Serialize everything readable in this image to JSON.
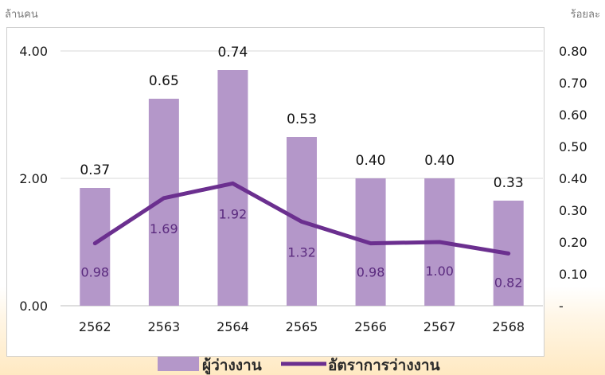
{
  "chart_data": {
    "type": "bar",
    "categories": [
      "2562",
      "2563",
      "2564",
      "2565",
      "2566",
      "2567",
      "2568"
    ],
    "left_axis_unit": "ล้านคน",
    "right_axis_unit": "ร้อยละ",
    "left_ticks": [
      "0.00",
      "2.00",
      "4.00"
    ],
    "right_ticks": [
      "-",
      "0.10",
      "0.20",
      "0.30",
      "0.40",
      "0.50",
      "0.60",
      "0.70",
      "0.80"
    ],
    "ylim_left": [
      0,
      4
    ],
    "ylim_right": [
      0,
      0.8
    ],
    "series": [
      {
        "name": "ผู้ว่างงาน",
        "type": "bar",
        "axis": "right",
        "color": "#b497c9",
        "values": [
          0.37,
          0.65,
          0.74,
          0.53,
          0.4,
          0.4,
          0.33
        ],
        "labels": [
          "0.37",
          "0.65",
          "0.74",
          "0.53",
          "0.40",
          "0.40",
          "0.33"
        ]
      },
      {
        "name": "อัตราการว่างงาน",
        "type": "line",
        "axis": "left",
        "color": "#6b2f8f",
        "values": [
          0.98,
          1.69,
          1.92,
          1.32,
          0.98,
          1.0,
          0.82
        ],
        "labels": [
          "0.98",
          "1.69",
          "1.92",
          "1.32",
          "0.98",
          "1.00",
          "0.82"
        ]
      }
    ],
    "grid": "horizontal",
    "legend": "bottom"
  }
}
